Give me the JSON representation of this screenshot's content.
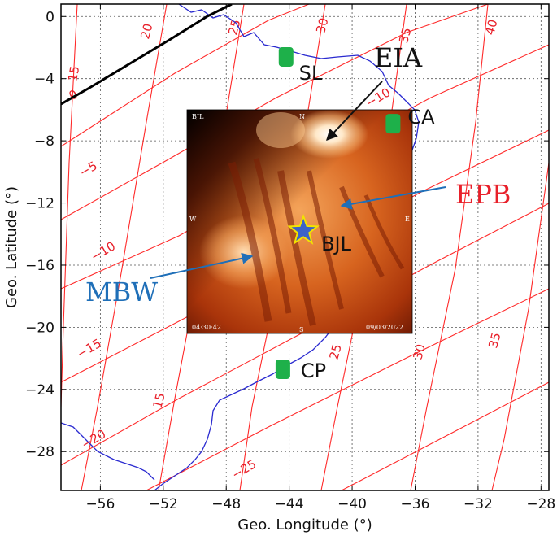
{
  "map": {
    "x_axis": {
      "label": "Geo. Longitude (°)",
      "range": [
        -58.5,
        -27.5
      ],
      "ticks": [
        -56,
        -52,
        -48,
        -44,
        -40,
        -36,
        -32,
        -28
      ],
      "tick_labels": [
        "−56",
        "−52",
        "−48",
        "−44",
        "−40",
        "−36",
        "−32",
        "−28"
      ]
    },
    "y_axis": {
      "label": "Geo. Latitude (°)",
      "range": [
        -30.5,
        0.8
      ],
      "ticks": [
        0,
        -4,
        -8,
        -12,
        -16,
        -20,
        -24,
        -28
      ],
      "tick_labels": [
        "0",
        "−4",
        "−8",
        "−12",
        "−16",
        "−20",
        "−24",
        "−28"
      ]
    },
    "grid": true,
    "magnetic_latitude_labels": [
      "0",
      "−5",
      "−10",
      "−15",
      "−20",
      "−25"
    ],
    "magnetic_longitude_labels": [
      "15",
      "20",
      "25",
      "30",
      "35",
      "40"
    ],
    "magnetic_grid_color": "#ff2a2a",
    "coastline_color": "#2222cc",
    "dip_equator_color": "#000000",
    "stations": [
      {
        "name": "SL",
        "lon": -44.2,
        "lat": -2.6,
        "marker": "green-rounded-square"
      },
      {
        "name": "CA",
        "lon": -37.4,
        "lat": -6.9,
        "marker": "green-rounded-square"
      },
      {
        "name": "CP",
        "lon": -44.4,
        "lat": -22.7,
        "marker": "green-rounded-square"
      },
      {
        "name": "BJL",
        "lon": -43.1,
        "lat": -13.8,
        "marker": "blue-star-yellow-outline"
      }
    ],
    "marker_color": "#1eb04a",
    "star_color": "#3d63c8",
    "star_outline": "#f2e300"
  },
  "imager": {
    "station": "BJL",
    "time": "04:30:42",
    "date": "09/03/2022",
    "directions": {
      "north": "N",
      "south": "S",
      "east": "E",
      "west": "W"
    }
  },
  "annotations": {
    "eia": {
      "text": "EIA",
      "color": "#111111"
    },
    "epb": {
      "text": "EPB",
      "color": "#e8202a"
    },
    "mbw": {
      "text": "MBW",
      "color": "#1f6fb8"
    },
    "arrow_blue": "#1f6fb8",
    "arrow_black": "#111111"
  }
}
